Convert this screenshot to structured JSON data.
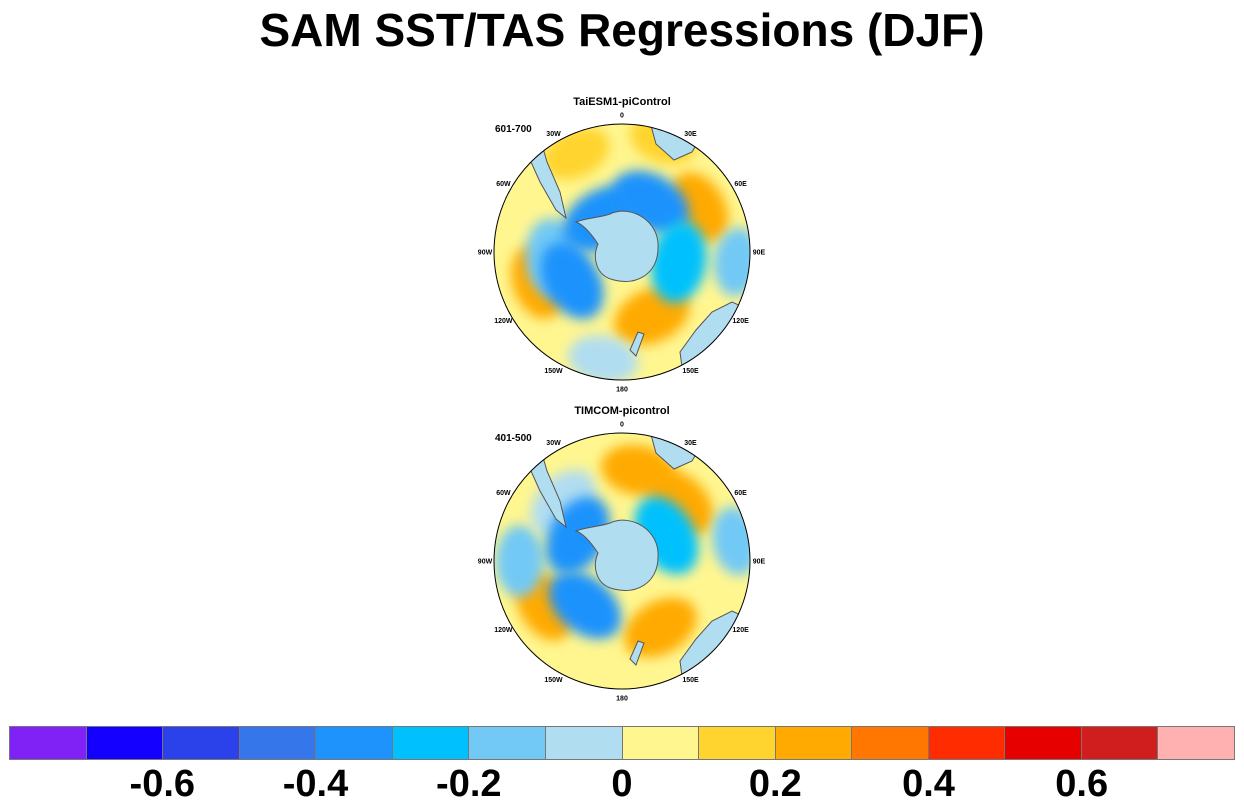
{
  "title": "SAM SST/TAS Regressions (DJF)",
  "chart_data": {
    "type": "heatmap",
    "title": "SAM SST/TAS Regressions (DJF)",
    "projection": "south polar stereographic",
    "lon_labels": [
      "0",
      "30E",
      "60E",
      "90E",
      "120E",
      "150E",
      "180",
      "150W",
      "120W",
      "90W",
      "60W",
      "30W"
    ],
    "panels": [
      {
        "title": "TaiESM1-piControl",
        "period": "601-700",
        "features": [
          {
            "lon": 20,
            "r": 0.93,
            "value": 0.15
          },
          {
            "lon": -25,
            "r": 0.85,
            "value": 0.15
          },
          {
            "lon": 60,
            "r": 0.7,
            "value": 0.25
          },
          {
            "lon": 95,
            "r": 0.9,
            "value": -0.15
          },
          {
            "lon": 155,
            "r": 0.55,
            "value": 0.25
          },
          {
            "lon": 190,
            "r": 0.85,
            "value": -0.05
          },
          {
            "lon": 250,
            "r": 0.7,
            "value": 0.25
          },
          {
            "lon": 265,
            "r": 0.55,
            "value": -0.15
          },
          {
            "lon": 330,
            "r": 0.3,
            "value": -0.35
          },
          {
            "lon": 30,
            "r": 0.45,
            "value": -0.35
          },
          {
            "lon": 100,
            "r": 0.45,
            "value": -0.25
          },
          {
            "lon": 240,
            "r": 0.45,
            "value": -0.35
          }
        ]
      },
      {
        "title": "TIMCOM-picontrol",
        "period": "401-500",
        "features": [
          {
            "lon": 10,
            "r": 0.72,
            "value": 0.2
          },
          {
            "lon": 45,
            "r": 0.65,
            "value": 0.25
          },
          {
            "lon": 80,
            "r": 0.9,
            "value": -0.15
          },
          {
            "lon": 150,
            "r": 0.6,
            "value": 0.25
          },
          {
            "lon": 240,
            "r": 0.7,
            "value": 0.2
          },
          {
            "lon": 270,
            "r": 0.8,
            "value": -0.15
          },
          {
            "lon": 315,
            "r": 0.65,
            "value": -0.05
          },
          {
            "lon": 300,
            "r": 0.4,
            "value": -0.35
          },
          {
            "lon": 60,
            "r": 0.4,
            "value": -0.25
          },
          {
            "lon": 220,
            "r": 0.45,
            "value": -0.35
          }
        ]
      }
    ],
    "colorbar": {
      "colors": [
        "#8022f5",
        "#1400ff",
        "#2b41ea",
        "#3576eb",
        "#1e93fc",
        "#00c1fd",
        "#72c9f5",
        "#b1ddf1",
        "#fff690",
        "#ffd42f",
        "#ffaa00",
        "#ff7700",
        "#ff2c00",
        "#e70000",
        "#d01d1d",
        "#ffb1b1"
      ],
      "ticks": [
        -0.6,
        -0.4,
        -0.2,
        0,
        0.2,
        0.4,
        0.6
      ],
      "tick_labels": [
        "-0.6",
        "-0.4",
        "-0.2",
        "0",
        "0.2",
        "0.4",
        "0.6"
      ],
      "range": [
        -0.8,
        0.8
      ]
    },
    "land_color": "#b1ddf1"
  }
}
